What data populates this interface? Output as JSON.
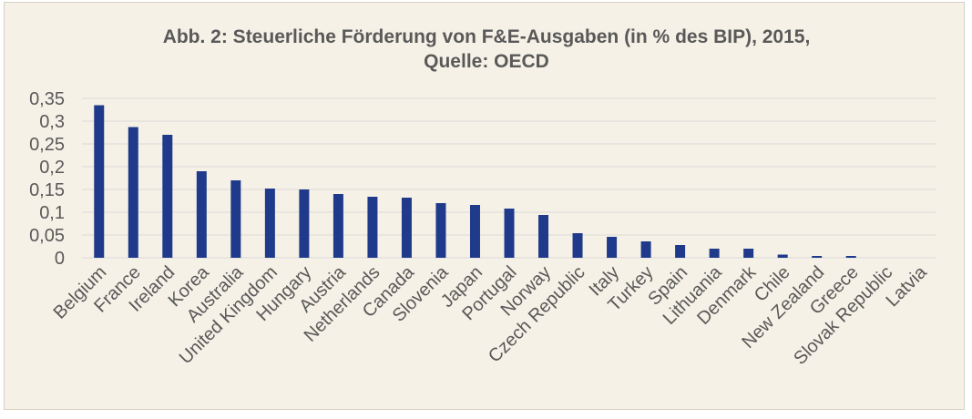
{
  "chart_data": {
    "type": "bar",
    "title": "Abb. 2: Steuerliche Förderung von F&E-Ausgaben (in % des BIP), 2015,",
    "subtitle": "Quelle: OECD",
    "categories": [
      "Belgium",
      "France",
      "Ireland",
      "Korea",
      "Australia",
      "United Kingdom",
      "Hungary",
      "Austria",
      "Netherlands",
      "Canada",
      "Slovenia",
      "Japan",
      "Portugal",
      "Norway",
      "Czech Republic",
      "Italy",
      "Turkey",
      "Spain",
      "Lithuania",
      "Denmark",
      "Chile",
      "New Zealand",
      "Greece",
      "Slovak Republic",
      "Latvia"
    ],
    "values": [
      0.335,
      0.287,
      0.27,
      0.19,
      0.17,
      0.152,
      0.15,
      0.14,
      0.134,
      0.132,
      0.12,
      0.116,
      0.108,
      0.094,
      0.054,
      0.046,
      0.036,
      0.028,
      0.02,
      0.02,
      0.007,
      0.004,
      0.004,
      0,
      0
    ],
    "yticks": [
      "0",
      "0,05",
      "0,1",
      "0,15",
      "0,2",
      "0,25",
      "0,3",
      "0,35"
    ],
    "ylim": [
      0,
      0.35
    ],
    "grid": true,
    "bar_color": "#1f3a8a"
  }
}
